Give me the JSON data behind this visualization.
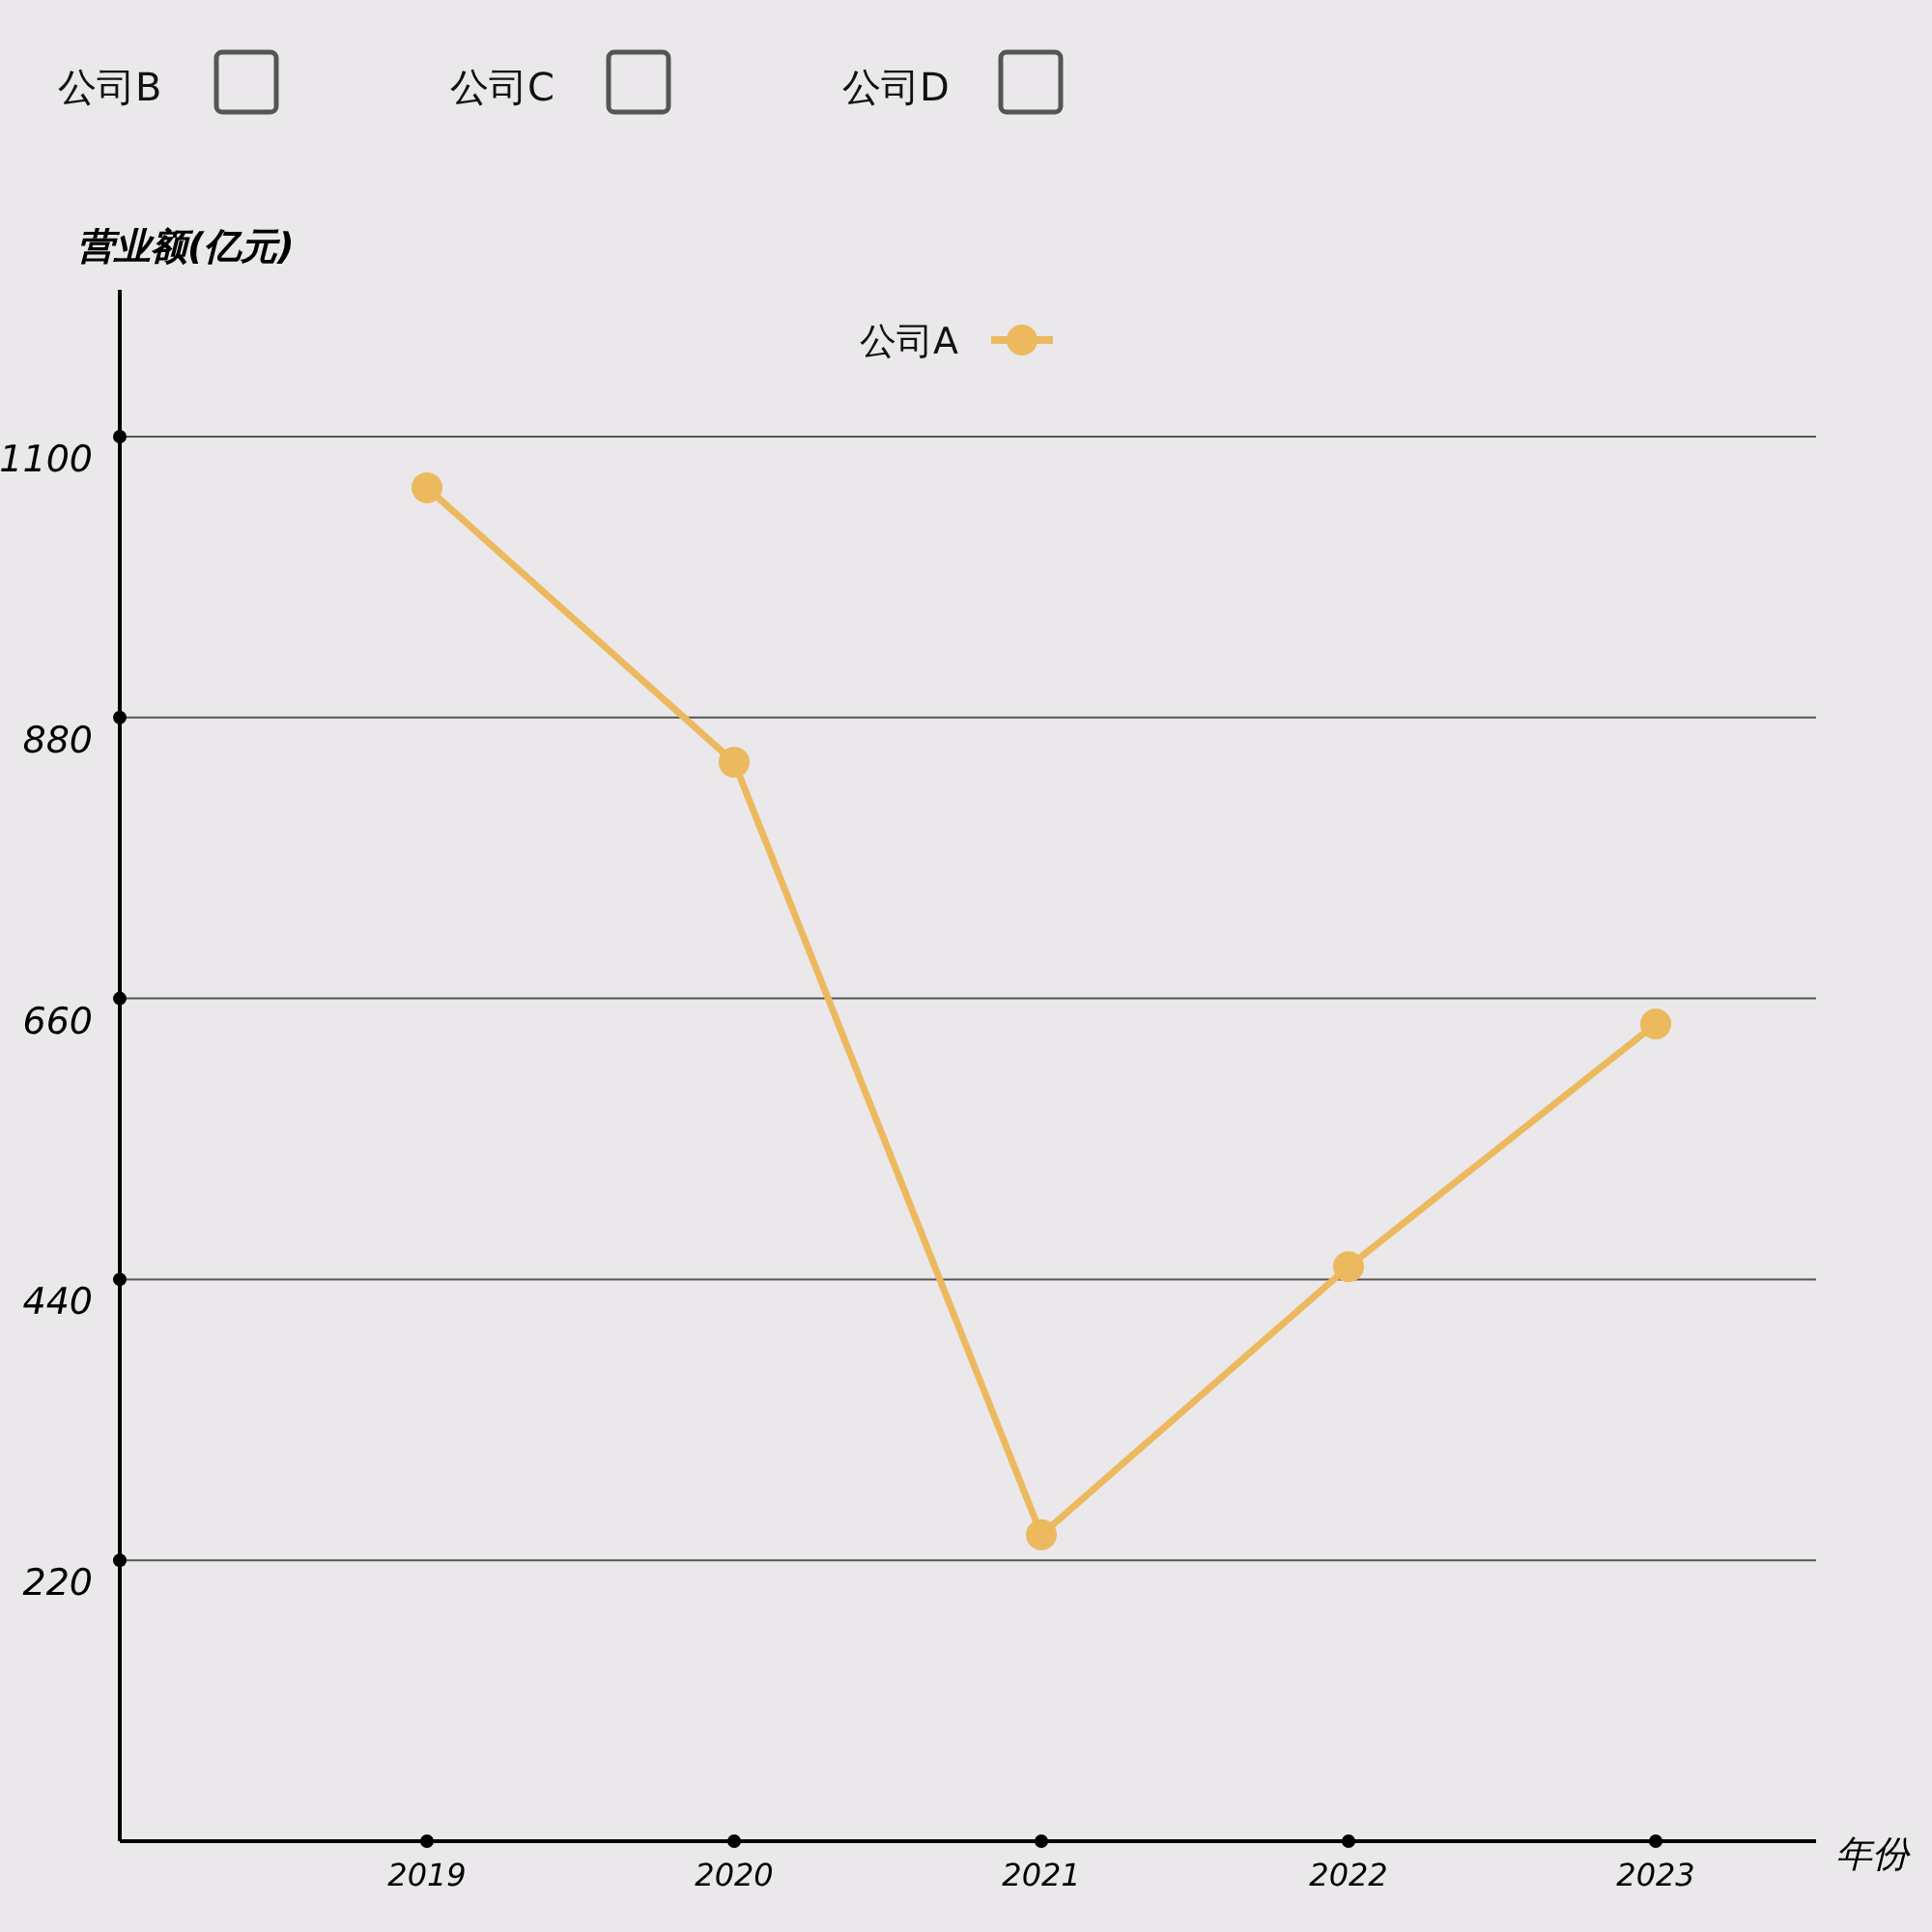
{
  "chart_data": {
    "type": "line",
    "ylabel": "营业额(亿元)",
    "xlabel": "年份",
    "categories": [
      "2019",
      "2020",
      "2021",
      "2022",
      "2023"
    ],
    "series": [
      {
        "name": "公司A",
        "color": "#ecb95e",
        "values": [
          1060,
          845,
          240,
          450,
          640
        ]
      }
    ],
    "ylim": [
      0,
      1215
    ],
    "yticks": [
      220,
      440,
      660,
      880,
      1100
    ],
    "grid": "y",
    "legend": "top",
    "marker": "circle",
    "annotations": [
      "公司B",
      "公司C",
      "公司D"
    ]
  }
}
